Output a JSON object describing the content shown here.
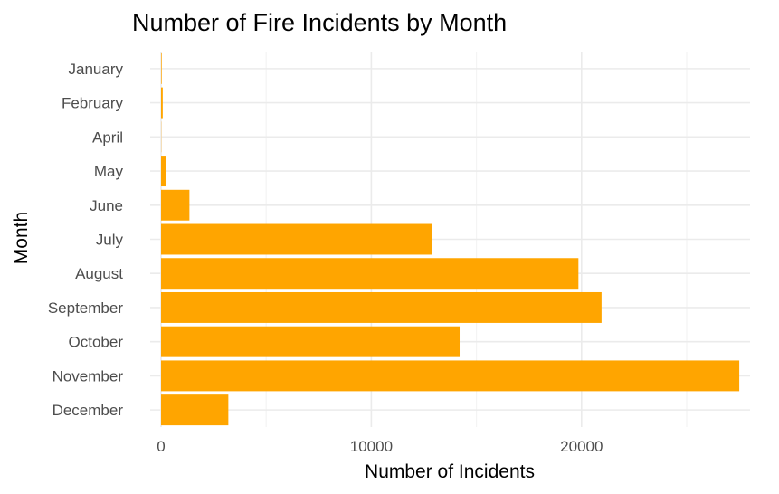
{
  "chart_data": {
    "type": "bar",
    "orientation": "horizontal",
    "title": "Number of Fire Incidents by Month",
    "xlabel": "Number of Incidents",
    "ylabel": "Month",
    "categories": [
      "January",
      "February",
      "April",
      "May",
      "June",
      "July",
      "August",
      "September",
      "October",
      "November",
      "December"
    ],
    "values": [
      30,
      80,
      10,
      250,
      1350,
      12900,
      19850,
      20950,
      14200,
      27500,
      3200
    ],
    "xlim": [
      -500,
      28600
    ],
    "xticks": [
      0,
      10000,
      20000
    ],
    "xtick_labels": [
      "0",
      "10000",
      "20000"
    ],
    "grid": true,
    "bar_color": "#FFA500"
  }
}
